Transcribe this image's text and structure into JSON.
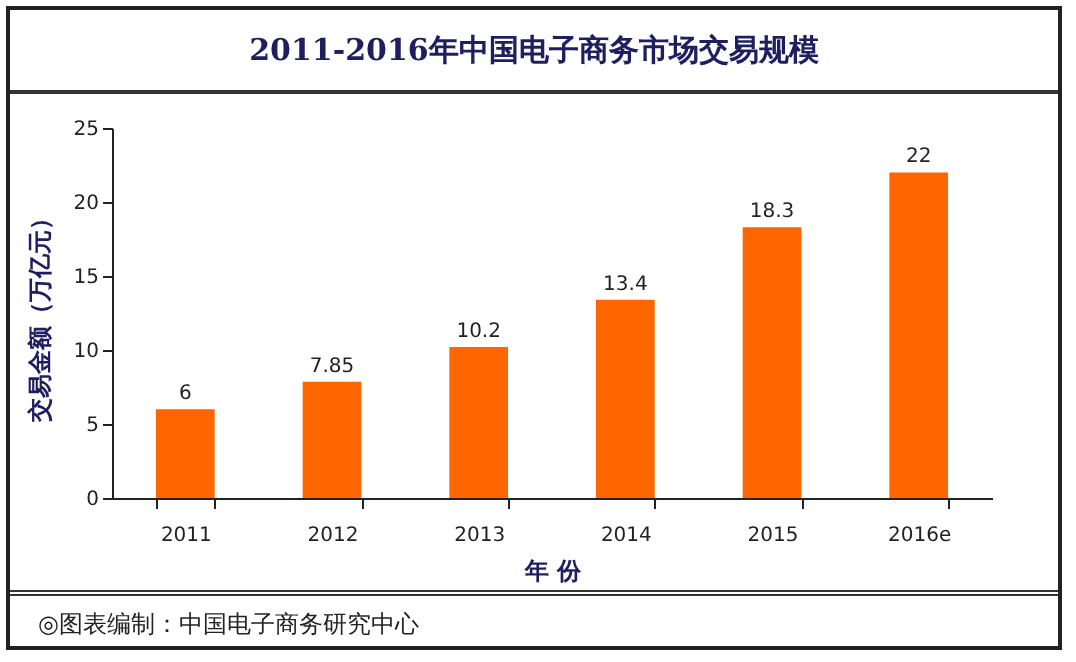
{
  "chart_data": {
    "type": "bar",
    "title": "2011-2016年中国电子商务市场交易规模",
    "categories": [
      "2011",
      "2012",
      "2013",
      "2014",
      "2015",
      "2016e"
    ],
    "values": [
      6,
      7.85,
      10.2,
      13.4,
      18.3,
      22
    ],
    "color": "#ff6600",
    "xlabel": "年 份",
    "ylabel": "交易金额（万亿元）",
    "ylim": [
      0,
      25
    ],
    "yticks": [
      0,
      5,
      10,
      15,
      20,
      25
    ],
    "data_labels": true,
    "grid": false,
    "annotations": [
      "◎图表编制：中国电子商务研究中心"
    ]
  }
}
